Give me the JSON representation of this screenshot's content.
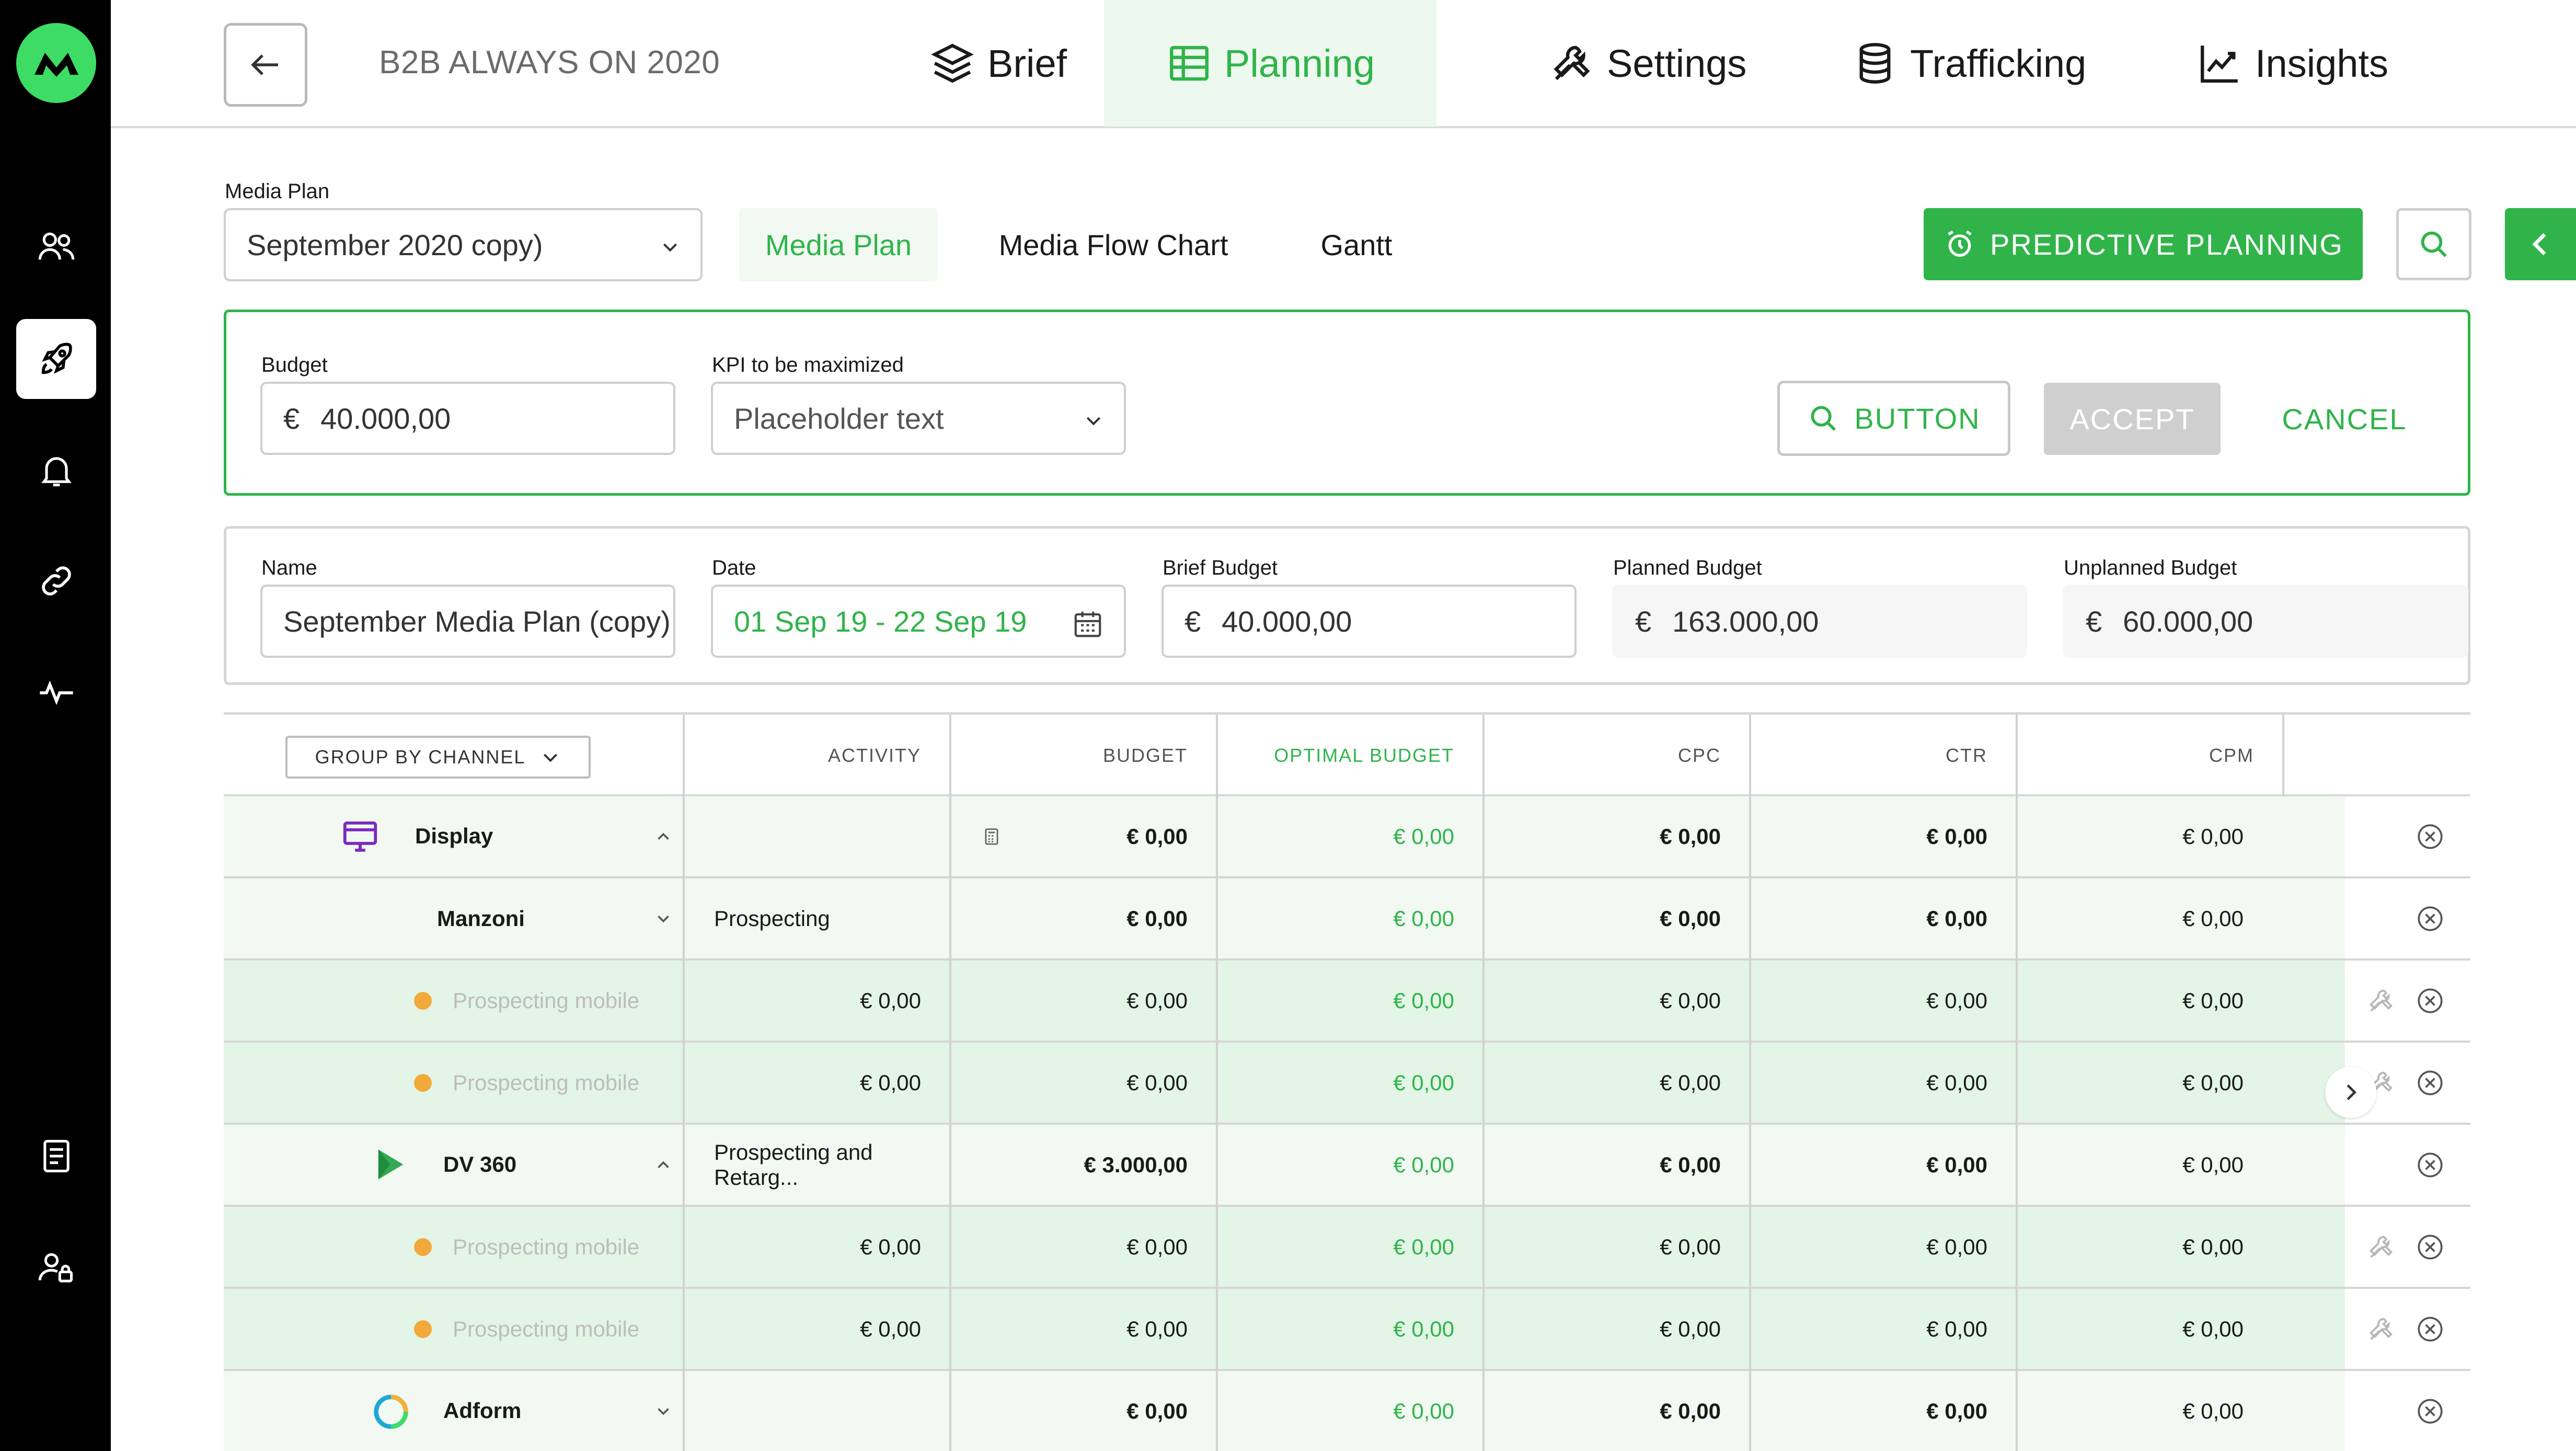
{
  "app": {
    "accent": "#30b44a",
    "sidebar_bg": "#000000"
  },
  "sidebar": {
    "items": [
      {
        "icon": "users-icon"
      },
      {
        "icon": "rocket-icon",
        "active": true
      },
      {
        "icon": "bell-icon"
      },
      {
        "icon": "link-icon"
      },
      {
        "icon": "activity-icon"
      },
      {
        "icon": "document-icon"
      },
      {
        "icon": "user-lock-icon"
      }
    ]
  },
  "header": {
    "campaign_title": "B2B ALWAYS ON 2020",
    "tabs": [
      {
        "label": "Brief",
        "icon": "layers-icon"
      },
      {
        "label": "Planning",
        "icon": "table-icon",
        "active": true
      },
      {
        "label": "Settings",
        "icon": "tools-icon"
      },
      {
        "label": "Trafficking",
        "icon": "database-icon"
      },
      {
        "label": "Insights",
        "icon": "chart-line-icon"
      }
    ]
  },
  "toolbar": {
    "media_plan_label": "Media Plan",
    "media_plan_value": "September 2020 copy)",
    "subtabs": [
      "Media Plan",
      "Media Flow Chart",
      "Gantt"
    ],
    "predictive_label": "PREDICTIVE PLANNING"
  },
  "predictive": {
    "budget_label": "Budget",
    "currency": "€",
    "budget_value": "40.000,00",
    "kpi_label": "KPI to be maximized",
    "kpi_placeholder": "Placeholder text",
    "button_label": "BUTTON",
    "accept_label": "ACCEPT",
    "cancel_label": "CANCEL"
  },
  "info": {
    "name_label": "Name",
    "name_value": "September Media Plan (copy)",
    "date_label": "Date",
    "date_value": "01 Sep 19 - 22 Sep 19",
    "brief_budget_label": "Brief Budget",
    "brief_budget_value": "40.000,00",
    "planned_budget_label": "Planned Budget",
    "planned_budget_value": "163.000,00",
    "unplanned_budget_label": "Unplanned Budget",
    "unplanned_budget_value": "60.000,00",
    "currency": "€"
  },
  "table": {
    "group_by_label": "GROUP BY CHANNEL",
    "columns": [
      "ACTIVITY",
      "BUDGET",
      "OPTIMAL BUDGET",
      "CPC",
      "CTR",
      "CPM"
    ],
    "rows": [
      {
        "level": 1,
        "name": "Display",
        "icon": "monitor-icon",
        "activity": "",
        "budget": "€ 0,00",
        "optimal": "€ 0,00",
        "cpc": "€ 0,00",
        "ctr": "€ 0,00",
        "cpm": "€ 0,00",
        "calc": true,
        "expand": "up"
      },
      {
        "level": 2,
        "name": "Manzoni",
        "activity": "Prospecting",
        "budget": "€ 0,00",
        "optimal": "€ 0,00",
        "cpc": "€ 0,00",
        "ctr": "€ 0,00",
        "cpm": "€ 0,00",
        "expand": "down"
      },
      {
        "level": 3,
        "name": "Prospecting mobile",
        "activity": "€  0,00",
        "budget": "€ 0,00",
        "optimal": "€ 0,00",
        "cpc": "€ 0,00",
        "ctr": "€ 0,00",
        "cpm": "€ 0,00"
      },
      {
        "level": 3,
        "name": "Prospecting mobile",
        "activity": "€  0,00",
        "budget": "€ 0,00",
        "optimal": "€ 0,00",
        "cpc": "€ 0,00",
        "ctr": "€ 0,00",
        "cpm": "€ 0,00"
      },
      {
        "level": 1,
        "name": "DV 360",
        "icon": "dv360-icon",
        "activity": "Prospecting and Retarg...",
        "budget": "€ 3.000,00",
        "optimal": "€ 0,00",
        "cpc": "€ 0,00",
        "ctr": "€ 0,00",
        "cpm": "€ 0,00",
        "expand": "up"
      },
      {
        "level": 3,
        "name": "Prospecting mobile",
        "activity": "€  0,00",
        "budget": "€ 0,00",
        "optimal": "€ 0,00",
        "cpc": "€ 0,00",
        "ctr": "€ 0,00",
        "cpm": "€ 0,00"
      },
      {
        "level": 3,
        "name": "Prospecting mobile",
        "activity": "€  0,00",
        "budget": "€ 0,00",
        "optimal": "€ 0,00",
        "cpc": "€ 0,00",
        "ctr": "€ 0,00",
        "cpm": "€ 0,00"
      },
      {
        "level": 1,
        "name": "Adform",
        "icon": "adform-icon",
        "activity": "",
        "budget": "€ 0,00",
        "optimal": "€ 0,00",
        "cpc": "€ 0,00",
        "ctr": "€ 0,00",
        "cpm": "€ 0,00",
        "expand": "down"
      }
    ]
  }
}
